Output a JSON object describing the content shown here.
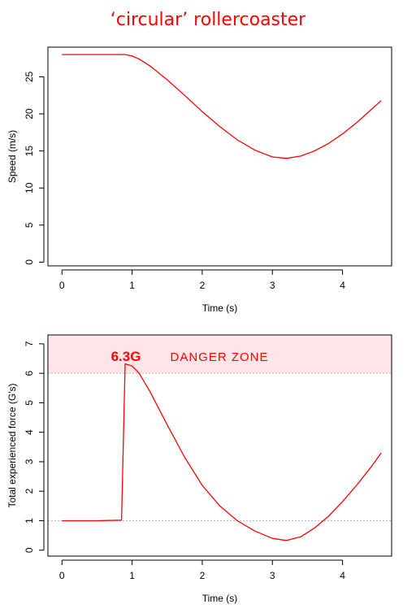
{
  "title": "‘circular’ rollercoaster",
  "colors": {
    "accent": "#ff0000",
    "danger_fill": "#ffe4e8",
    "grid": "#bbbbbb",
    "axis": "#000000"
  },
  "chart_data": [
    {
      "type": "line",
      "xlabel": "Time (s)",
      "ylabel": "Speed (m/s)",
      "xlim": [
        -0.2,
        4.7
      ],
      "ylim": [
        -0.5,
        29
      ],
      "xticks": [
        0,
        1,
        2,
        3,
        4
      ],
      "yticks": [
        0,
        5,
        10,
        15,
        20,
        25
      ],
      "grid": false,
      "series": [
        {
          "x": [
            0,
            0.5,
            0.9,
            1.0,
            1.1,
            1.25,
            1.5,
            1.75,
            2.0,
            2.25,
            2.5,
            2.75,
            3.0,
            3.2,
            3.4,
            3.6,
            3.8,
            4.0,
            4.2,
            4.4,
            4.55
          ],
          "y": [
            28,
            28,
            28,
            27.8,
            27.4,
            26.5,
            24.6,
            22.5,
            20.3,
            18.3,
            16.5,
            15.1,
            14.2,
            14.0,
            14.3,
            15.0,
            16.0,
            17.3,
            18.8,
            20.5,
            21.8
          ]
        }
      ]
    },
    {
      "type": "line",
      "xlabel": "Time (s)",
      "ylabel": "Total experienced force (G's)",
      "xlim": [
        -0.2,
        4.7
      ],
      "ylim": [
        -0.2,
        7.3
      ],
      "xticks": [
        0,
        1,
        2,
        3,
        4
      ],
      "yticks": [
        0,
        1,
        2,
        3,
        4,
        5,
        6,
        7
      ],
      "grid": false,
      "reference_lines": [
        6,
        1
      ],
      "danger_band": [
        6,
        7.3
      ],
      "annotations": {
        "peak_label": "6.3G",
        "zone_label": "DANGER ZONE"
      },
      "series": [
        {
          "x": [
            0,
            0.5,
            0.85,
            0.9,
            1.0,
            1.1,
            1.25,
            1.5,
            1.75,
            2.0,
            2.25,
            2.5,
            2.75,
            3.0,
            3.2,
            3.4,
            3.6,
            3.8,
            4.0,
            4.2,
            4.4,
            4.55
          ],
          "y": [
            1.0,
            1.0,
            1.02,
            6.32,
            6.25,
            6.0,
            5.4,
            4.25,
            3.15,
            2.2,
            1.5,
            1.0,
            0.65,
            0.4,
            0.33,
            0.45,
            0.75,
            1.15,
            1.65,
            2.2,
            2.8,
            3.3
          ]
        }
      ]
    }
  ]
}
